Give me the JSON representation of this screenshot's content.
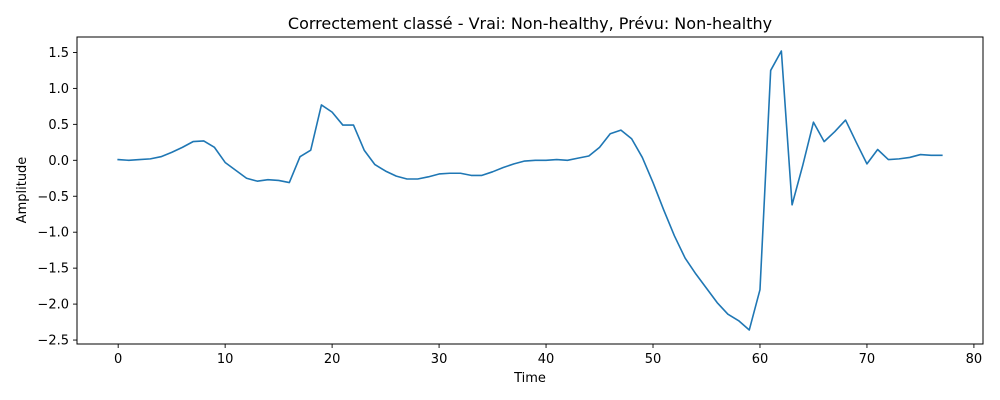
{
  "chart_data": {
    "type": "line",
    "title": "Correctement classé - Vrai: Non-healthy, Prévu: Non-healthy",
    "xlabel": "Time",
    "ylabel": "Amplitude",
    "xlim": [
      -3.85,
      80.85
    ],
    "ylim": [
      -2.555,
      1.715
    ],
    "xticks": [
      0,
      10,
      20,
      30,
      40,
      50,
      60,
      70,
      80
    ],
    "yticks": [
      -2.5,
      -2.0,
      -1.5,
      -1.0,
      -0.5,
      0.0,
      0.5,
      1.0,
      1.5
    ],
    "xtick_labels": [
      "0",
      "10",
      "20",
      "30",
      "40",
      "50",
      "60",
      "70",
      "80"
    ],
    "ytick_labels": [
      "−2.5",
      "−2.0",
      "−1.5",
      "−1.0",
      "−0.5",
      "0.0",
      "0.5",
      "1.0",
      "1.5"
    ],
    "grid": false,
    "series": [
      {
        "color": "#1f77b4",
        "x": [
          0,
          1,
          2,
          3,
          4,
          5,
          6,
          7,
          8,
          9,
          10,
          11,
          12,
          13,
          14,
          15,
          16,
          17,
          18,
          19,
          20,
          21,
          22,
          23,
          24,
          25,
          26,
          27,
          28,
          29,
          30,
          31,
          32,
          33,
          34,
          35,
          36,
          37,
          38,
          39,
          40,
          41,
          42,
          43,
          44,
          45,
          46,
          47,
          48,
          49,
          50,
          51,
          52,
          53,
          54,
          55,
          56,
          57,
          58,
          59,
          60,
          61,
          62,
          63,
          64,
          65,
          66,
          67,
          68,
          69,
          70,
          71,
          72,
          73,
          74,
          75,
          76,
          77
        ],
        "values": [
          0.01,
          0.0,
          0.01,
          0.02,
          0.05,
          0.11,
          0.18,
          0.26,
          0.27,
          0.18,
          -0.03,
          -0.14,
          -0.25,
          -0.29,
          -0.27,
          -0.28,
          -0.31,
          0.05,
          0.14,
          0.77,
          0.67,
          0.49,
          0.49,
          0.14,
          -0.06,
          -0.15,
          -0.22,
          -0.26,
          -0.26,
          -0.23,
          -0.19,
          -0.18,
          -0.18,
          -0.21,
          -0.21,
          -0.16,
          -0.1,
          -0.05,
          -0.01,
          0.0,
          0.0,
          0.01,
          0.0,
          0.03,
          0.06,
          0.18,
          0.37,
          0.42,
          0.3,
          0.04,
          -0.31,
          -0.69,
          -1.05,
          -1.36,
          -1.58,
          -1.78,
          -1.98,
          -2.14,
          -2.23,
          -2.36,
          -1.8,
          1.25,
          1.52,
          -0.62,
          -0.07,
          0.53,
          0.26,
          0.4,
          0.56,
          0.25,
          -0.05,
          0.15,
          0.01,
          0.02,
          0.04,
          0.08,
          0.07,
          0.07
        ]
      }
    ]
  }
}
